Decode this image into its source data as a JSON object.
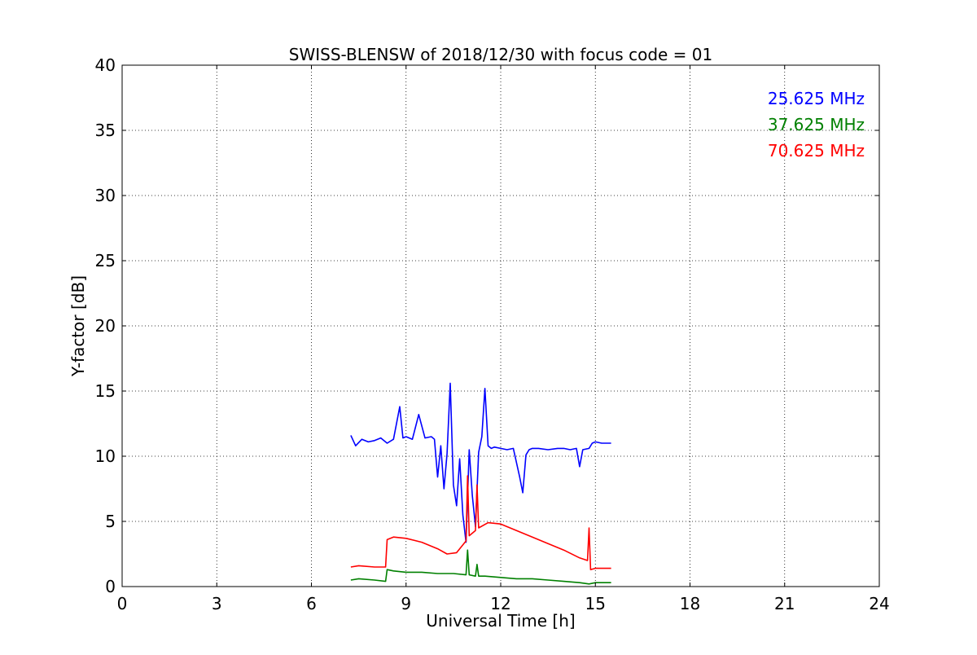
{
  "chart_data": {
    "type": "line",
    "title": "SWISS-BLENSW of 2018/12/30 with focus code = 01",
    "xlabel": "Universal Time [h]",
    "ylabel": "Y-factor [dB]",
    "xlim": [
      0,
      24
    ],
    "ylim": [
      0,
      40
    ],
    "xticks": [
      0,
      3,
      6,
      9,
      12,
      15,
      18,
      21,
      24
    ],
    "yticks": [
      0,
      5,
      10,
      15,
      20,
      25,
      30,
      35,
      40
    ],
    "xtick_labels": [
      "0",
      "3",
      "6",
      "9",
      "12",
      "15",
      "18",
      "21",
      "24"
    ],
    "ytick_labels": [
      "0",
      "5",
      "10",
      "15",
      "20",
      "25",
      "30",
      "35",
      "40"
    ],
    "grid": true,
    "legend_position": "top-right",
    "series": [
      {
        "name": "25.625 MHz",
        "color": "#0000ff",
        "x": [
          7.25,
          7.4,
          7.6,
          7.8,
          8.0,
          8.2,
          8.4,
          8.6,
          8.8,
          8.9,
          9.0,
          9.2,
          9.4,
          9.6,
          9.8,
          9.9,
          10.0,
          10.1,
          10.2,
          10.3,
          10.4,
          10.5,
          10.6,
          10.7,
          10.8,
          10.9,
          11.0,
          11.1,
          11.2,
          11.3,
          11.4,
          11.5,
          11.6,
          11.7,
          11.8,
          12.0,
          12.2,
          12.4,
          12.6,
          12.7,
          12.8,
          12.9,
          13.0,
          13.2,
          13.5,
          13.8,
          14.0,
          14.2,
          14.4,
          14.5,
          14.6,
          14.8,
          14.9,
          15.0,
          15.2,
          15.5
        ],
        "y": [
          11.6,
          10.8,
          11.3,
          11.1,
          11.2,
          11.4,
          11.0,
          11.3,
          13.8,
          11.4,
          11.5,
          11.3,
          13.2,
          11.4,
          11.5,
          11.3,
          8.4,
          10.8,
          7.5,
          10.2,
          15.6,
          7.8,
          6.2,
          9.8,
          5.5,
          3.4,
          10.5,
          7.0,
          4.6,
          10.3,
          11.5,
          15.2,
          10.8,
          10.6,
          10.7,
          10.6,
          10.5,
          10.6,
          8.4,
          7.2,
          10.1,
          10.5,
          10.6,
          10.6,
          10.5,
          10.6,
          10.6,
          10.5,
          10.6,
          9.2,
          10.5,
          10.6,
          11.0,
          11.1,
          11.0,
          11.0
        ]
      },
      {
        "name": "37.625 MHz",
        "color": "#008000",
        "x": [
          7.25,
          7.5,
          8.0,
          8.35,
          8.4,
          8.6,
          9.0,
          9.5,
          10.0,
          10.5,
          10.9,
          10.95,
          11.0,
          11.2,
          11.25,
          11.3,
          11.5,
          12.0,
          12.5,
          13.0,
          13.5,
          14.0,
          14.5,
          14.8,
          15.0,
          15.5
        ],
        "y": [
          0.5,
          0.6,
          0.5,
          0.4,
          1.3,
          1.2,
          1.1,
          1.1,
          1.0,
          1.0,
          0.9,
          2.8,
          0.9,
          0.8,
          1.7,
          0.8,
          0.8,
          0.7,
          0.6,
          0.6,
          0.5,
          0.4,
          0.3,
          0.2,
          0.3,
          0.3
        ]
      },
      {
        "name": "70.625 MHz",
        "color": "#ff0000",
        "x": [
          7.25,
          7.5,
          8.0,
          8.35,
          8.4,
          8.6,
          9.0,
          9.5,
          10.0,
          10.3,
          10.6,
          10.9,
          10.95,
          11.0,
          11.2,
          11.25,
          11.3,
          11.6,
          12.0,
          12.5,
          13.0,
          13.5,
          14.0,
          14.5,
          14.75,
          14.8,
          14.85,
          15.0,
          15.5
        ],
        "y": [
          1.5,
          1.6,
          1.5,
          1.5,
          3.6,
          3.8,
          3.7,
          3.4,
          2.9,
          2.5,
          2.6,
          3.5,
          8.5,
          3.9,
          4.3,
          7.8,
          4.5,
          4.9,
          4.8,
          4.3,
          3.8,
          3.3,
          2.8,
          2.2,
          2.0,
          4.5,
          1.3,
          1.4,
          1.4
        ]
      }
    ]
  }
}
